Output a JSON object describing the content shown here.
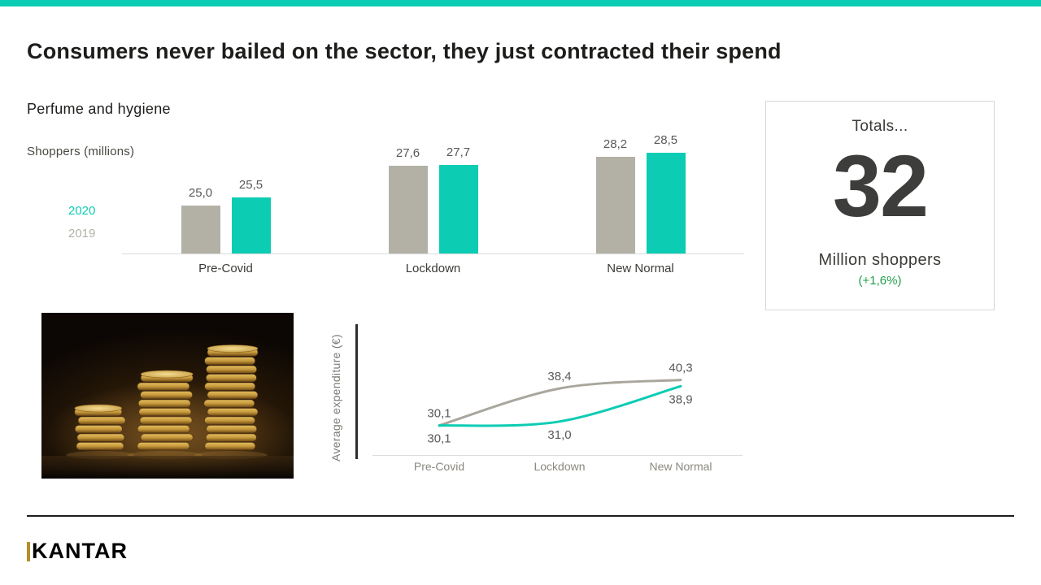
{
  "page": {
    "colors": {
      "teal": "#0cccb4",
      "warm_gray": "#b3b1a6",
      "green": "#1e9e4b",
      "ink": "#1d1d1b",
      "gold": "#b78e2c"
    }
  },
  "header": {
    "title": "Consumers never bailed on the sector, they just contracted their spend",
    "subtitle": "Perfume and hygiene"
  },
  "bar_section": {
    "axis_title": "Shoppers (millions)",
    "legend": [
      {
        "label": "2020",
        "color": "#0cccb4"
      },
      {
        "label": "2019",
        "color": "#b3b1a6"
      }
    ]
  },
  "totals_panel": {
    "title": "Totals...",
    "value": "32",
    "unit": "Million shoppers",
    "delta": "(+1,6%)",
    "delta_color": "#1e9e4b"
  },
  "line_section": {
    "axis_title": "Average expenditure (€)"
  },
  "footer": {
    "logo_text": "KANTAR"
  },
  "chart_data": [
    {
      "type": "bar",
      "title": "Shoppers (millions)",
      "categories": [
        "Pre-Covid",
        "Lockdown",
        "New Normal"
      ],
      "series": [
        {
          "name": "2019",
          "color": "#b3b1a6",
          "values": [
            25.0,
            27.6,
            28.2
          ],
          "labels": [
            "25,0",
            "27,6",
            "28,2"
          ]
        },
        {
          "name": "2020",
          "color": "#0cccb4",
          "values": [
            25.5,
            27.7,
            28.5
          ],
          "labels": [
            "25,5",
            "27,7",
            "28,5"
          ]
        }
      ],
      "ylabel": "Shoppers (millions)",
      "ylim": [
        21.8,
        30
      ],
      "grid": false,
      "legend_position": "left"
    },
    {
      "type": "line",
      "title": "Average expenditure (€)",
      "categories": [
        "Pre-Covid",
        "Lockdown",
        "New Normal"
      ],
      "series": [
        {
          "name": "2019",
          "color": "#a9a79d",
          "values": [
            30.1,
            38.4,
            40.3
          ],
          "labels": [
            "30,1",
            "38,4",
            "40,3"
          ],
          "label_position": "above"
        },
        {
          "name": "2020",
          "color": "#0cccb4",
          "values": [
            30.1,
            31.0,
            38.9
          ],
          "labels": [
            "30,1",
            "31,0",
            "38,9"
          ],
          "label_position": "below"
        }
      ],
      "ylabel": "Average expenditure (€)",
      "ylim": [
        23.5,
        42
      ],
      "grid": false
    }
  ]
}
